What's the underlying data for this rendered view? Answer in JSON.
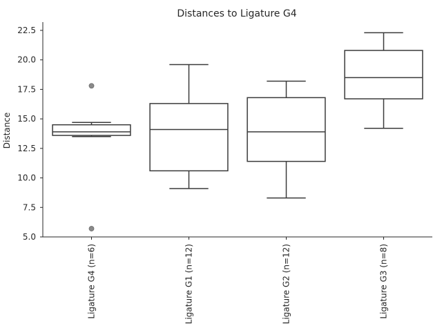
{
  "chart_data": {
    "type": "box",
    "title": "Distances to Ligature G4",
    "ylabel": "Distance",
    "xlabel": "",
    "ylim": [
      5.0,
      23.2
    ],
    "yticks": [
      5.0,
      7.5,
      10.0,
      12.5,
      15.0,
      17.5,
      20.0,
      22.5
    ],
    "ytick_labels": [
      "5.0",
      "7.5",
      "10.0",
      "12.5",
      "15.0",
      "17.5",
      "20.0",
      "22.5"
    ],
    "grid": false,
    "categories": [
      "Ligature G4 (n=6)",
      "Ligature G1 (n=12)",
      "Ligature G2 (n=12)",
      "Ligature G3 (n=8)"
    ],
    "boxes": [
      {
        "whisker_low": 13.5,
        "q1": 13.6,
        "median": 13.9,
        "q3": 14.5,
        "whisker_high": 14.7,
        "outliers": [
          17.8,
          5.7
        ]
      },
      {
        "whisker_low": 9.1,
        "q1": 10.6,
        "median": 14.1,
        "q3": 16.3,
        "whisker_high": 19.6,
        "outliers": []
      },
      {
        "whisker_low": 8.3,
        "q1": 11.4,
        "median": 13.9,
        "q3": 16.8,
        "whisker_high": 18.2,
        "outliers": []
      },
      {
        "whisker_low": 14.2,
        "q1": 16.7,
        "median": 18.5,
        "q3": 20.8,
        "whisker_high": 22.3,
        "outliers": []
      }
    ]
  }
}
